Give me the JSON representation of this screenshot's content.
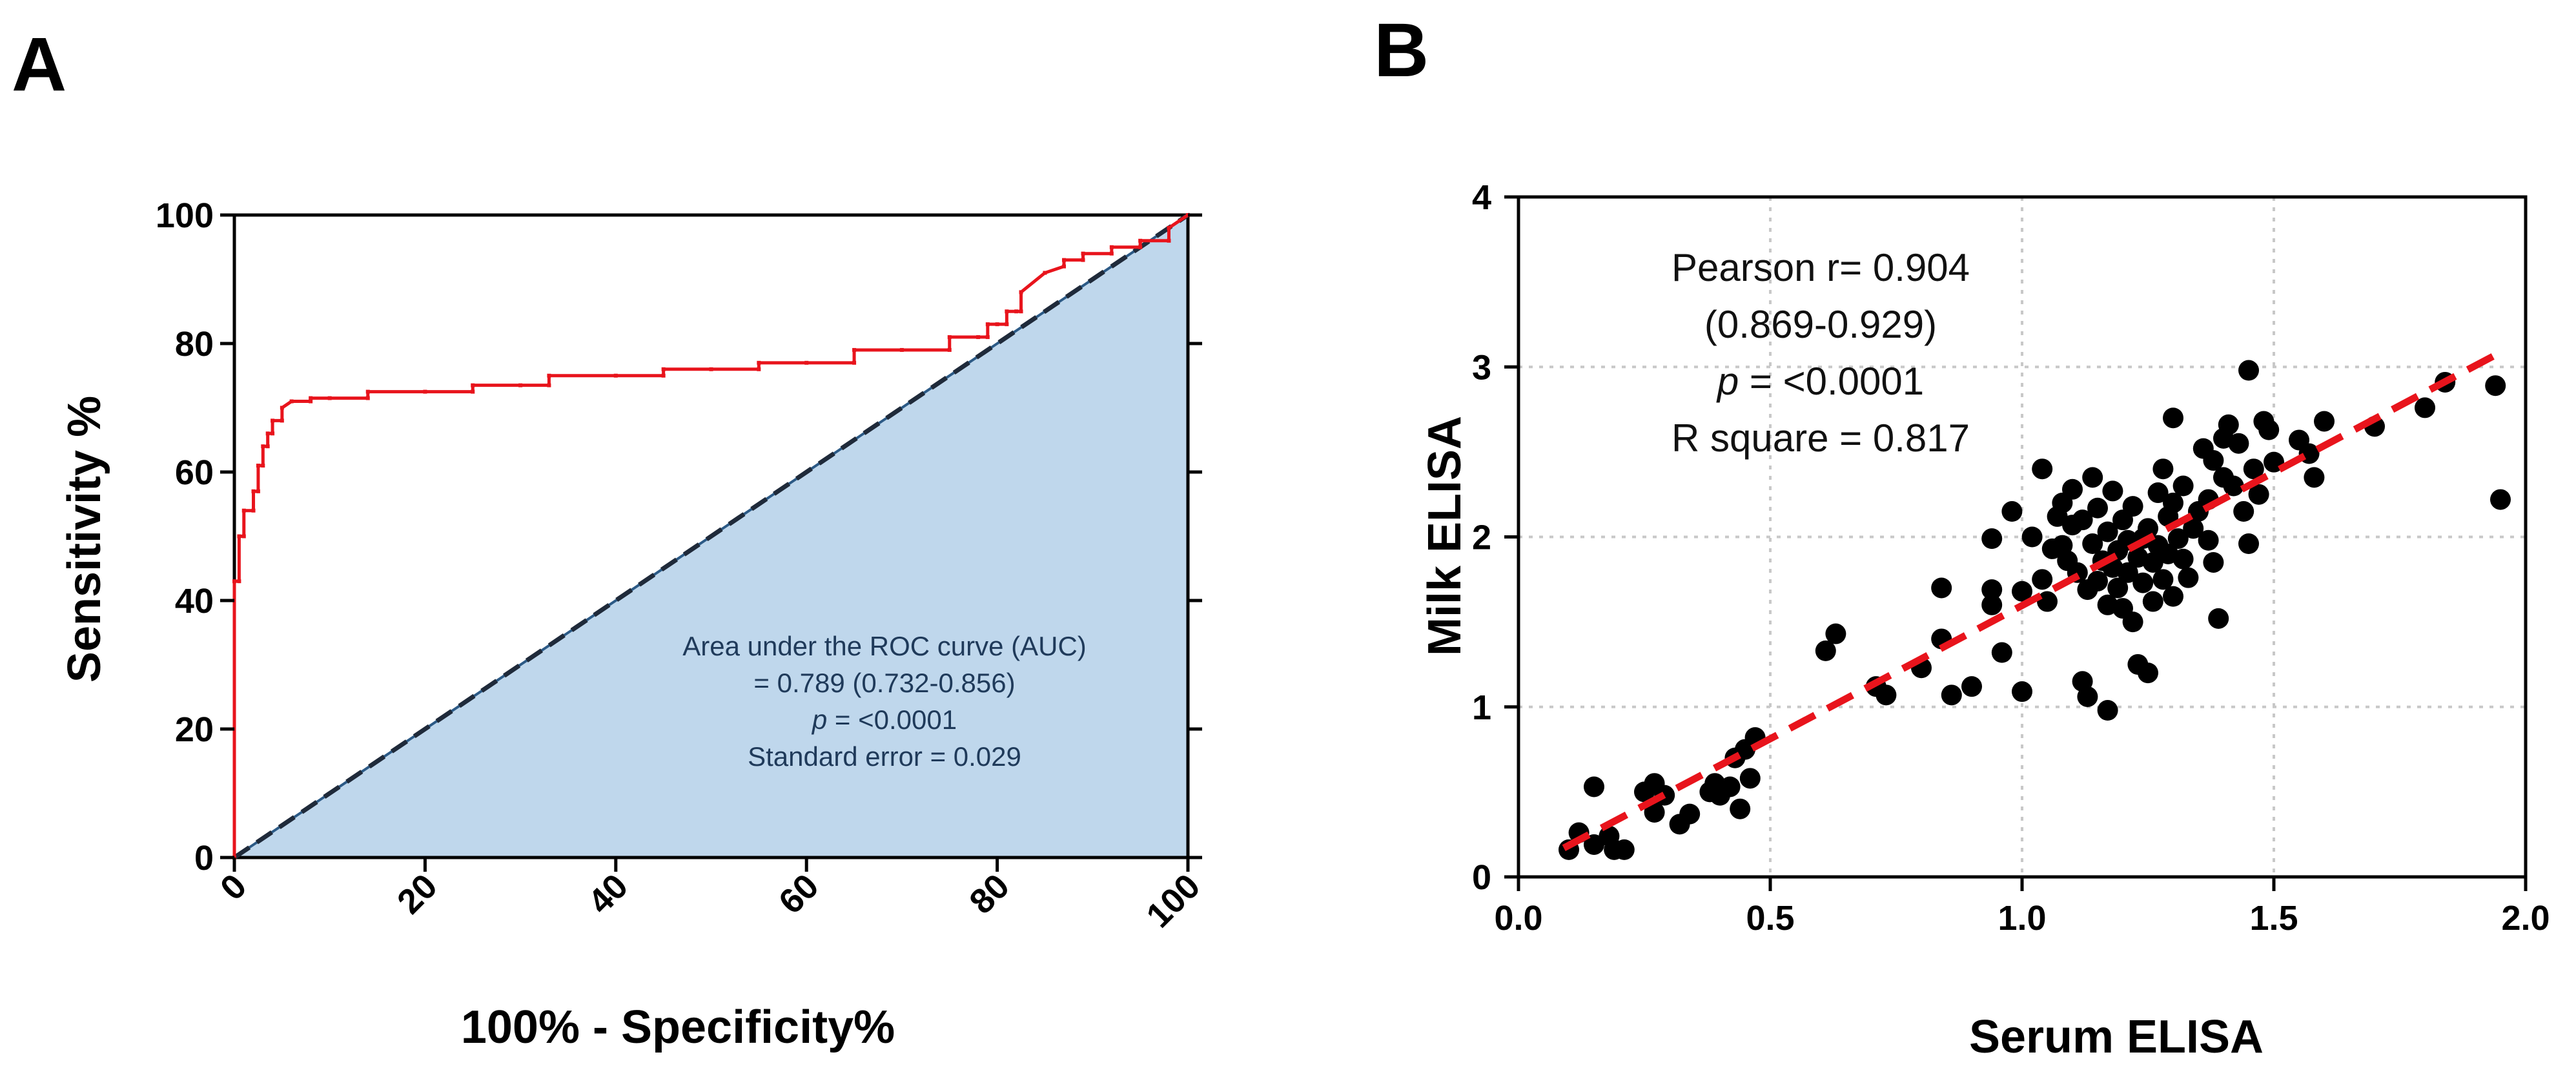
{
  "panels": {
    "a_letter": "A",
    "b_letter": "B"
  },
  "chart_data": [
    {
      "type": "line",
      "subtype": "roc",
      "panel": "A",
      "title": "",
      "xlabel": "100% - Specificity%",
      "ylabel": "Sensitivity %",
      "xlim": [
        0,
        100
      ],
      "ylim": [
        0,
        100
      ],
      "xticks": [
        0,
        20,
        40,
        60,
        80,
        100
      ],
      "yticks": [
        0,
        20,
        40,
        60,
        80,
        100
      ],
      "series": [
        {
          "name": "ROC curve",
          "color": "#e8141c",
          "x": [
            0,
            0,
            0.5,
            0.5,
            1,
            1,
            2,
            2,
            2.5,
            2.5,
            3,
            3,
            3.5,
            3.5,
            4,
            4,
            5,
            5,
            6,
            8,
            8,
            10,
            14,
            14,
            20,
            25,
            25,
            30,
            33,
            33,
            40,
            45,
            45,
            50,
            55,
            55,
            60,
            65,
            65,
            70,
            75,
            75,
            78,
            79,
            79,
            80,
            81,
            81,
            82,
            82.5,
            82.5,
            85,
            87,
            87,
            89,
            89,
            92,
            92,
            95,
            95,
            98,
            98,
            100
          ],
          "y": [
            0,
            43,
            43,
            50,
            50,
            54,
            54,
            57,
            57,
            61,
            61,
            64,
            64,
            66,
            66,
            68,
            68,
            70,
            71,
            71,
            71.5,
            71.5,
            71.5,
            72.5,
            72.5,
            72.5,
            73.5,
            73.5,
            73.5,
            75,
            75,
            75,
            76,
            76,
            76,
            77,
            77,
            77,
            79,
            79,
            79,
            81,
            81,
            81,
            83,
            83,
            83,
            85,
            85,
            85,
            88,
            91,
            92,
            93,
            93,
            94,
            94,
            95,
            95,
            96,
            96,
            98,
            100
          ]
        },
        {
          "name": "Reference line",
          "color": "#1f2a3a",
          "x": [
            0,
            100
          ],
          "y": [
            0,
            100
          ]
        }
      ],
      "shaded_area": {
        "name": "AUC region",
        "color": "#bfd7ec"
      },
      "annotation": {
        "line1": "Area under the ROC curve (AUC)",
        "line2": "= 0.789 (0.732-0.856)",
        "line3_italic": "p",
        "line3_rest": " = <0.0001",
        "line4": "Standard error = 0.029"
      }
    },
    {
      "type": "scatter",
      "panel": "B",
      "title": "",
      "xlabel": "Serum ELISA",
      "ylabel": "Milk ELISA",
      "xlim": [
        0,
        2
      ],
      "ylim": [
        0,
        4
      ],
      "xticks": [
        0,
        0.5,
        1,
        1.5,
        2
      ],
      "xtick_labels": [
        "0.0",
        "0.5",
        "1.0",
        "1.5",
        "2.0"
      ],
      "yticks": [
        0,
        1,
        2,
        3,
        4
      ],
      "ytick_labels": [
        "0",
        "1",
        "2",
        "3",
        "4"
      ],
      "grid": true,
      "point_color": "#000000",
      "points": [
        [
          0.1,
          0.16
        ],
        [
          0.12,
          0.26
        ],
        [
          0.15,
          0.19
        ],
        [
          0.15,
          0.53
        ],
        [
          0.18,
          0.24
        ],
        [
          0.19,
          0.16
        ],
        [
          0.21,
          0.16
        ],
        [
          0.25,
          0.5
        ],
        [
          0.27,
          0.55
        ],
        [
          0.27,
          0.38
        ],
        [
          0.29,
          0.48
        ],
        [
          0.32,
          0.31
        ],
        [
          0.34,
          0.37
        ],
        [
          0.38,
          0.5
        ],
        [
          0.39,
          0.55
        ],
        [
          0.4,
          0.48
        ],
        [
          0.42,
          0.53
        ],
        [
          0.43,
          0.7
        ],
        [
          0.44,
          0.4
        ],
        [
          0.45,
          0.75
        ],
        [
          0.46,
          0.58
        ],
        [
          0.47,
          0.82
        ],
        [
          0.61,
          1.33
        ],
        [
          0.63,
          1.43
        ],
        [
          0.71,
          1.12
        ],
        [
          0.73,
          1.07
        ],
        [
          0.8,
          1.23
        ],
        [
          0.84,
          1.4
        ],
        [
          0.84,
          1.7
        ],
        [
          0.86,
          1.07
        ],
        [
          0.9,
          1.12
        ],
        [
          0.94,
          1.99
        ],
        [
          0.94,
          1.69
        ],
        [
          0.94,
          1.6
        ],
        [
          0.96,
          1.32
        ],
        [
          0.98,
          2.15
        ],
        [
          1.0,
          1.09
        ],
        [
          1.0,
          1.68
        ],
        [
          1.02,
          2.0
        ],
        [
          1.04,
          2.4
        ],
        [
          1.04,
          1.75
        ],
        [
          1.05,
          1.62
        ],
        [
          1.06,
          1.93
        ],
        [
          1.07,
          2.12
        ],
        [
          1.08,
          2.2
        ],
        [
          1.08,
          1.95
        ],
        [
          1.09,
          1.86
        ],
        [
          1.1,
          2.07
        ],
        [
          1.1,
          2.28
        ],
        [
          1.11,
          1.79
        ],
        [
          1.12,
          1.15
        ],
        [
          1.12,
          2.1
        ],
        [
          1.13,
          1.06
        ],
        [
          1.13,
          1.69
        ],
        [
          1.14,
          2.35
        ],
        [
          1.14,
          1.96
        ],
        [
          1.15,
          2.17
        ],
        [
          1.15,
          1.74
        ],
        [
          1.16,
          1.86
        ],
        [
          1.17,
          0.98
        ],
        [
          1.17,
          2.03
        ],
        [
          1.17,
          1.6
        ],
        [
          1.18,
          2.27
        ],
        [
          1.18,
          1.82
        ],
        [
          1.19,
          1.92
        ],
        [
          1.19,
          1.7
        ],
        [
          1.2,
          2.1
        ],
        [
          1.2,
          1.58
        ],
        [
          1.21,
          1.98
        ],
        [
          1.21,
          1.79
        ],
        [
          1.22,
          1.5
        ],
        [
          1.22,
          2.18
        ],
        [
          1.23,
          1.88
        ],
        [
          1.23,
          1.25
        ],
        [
          1.24,
          1.99
        ],
        [
          1.24,
          1.73
        ],
        [
          1.25,
          2.05
        ],
        [
          1.25,
          1.2
        ],
        [
          1.26,
          1.85
        ],
        [
          1.26,
          1.62
        ],
        [
          1.27,
          2.26
        ],
        [
          1.27,
          1.95
        ],
        [
          1.28,
          1.75
        ],
        [
          1.28,
          2.4
        ],
        [
          1.29,
          2.12
        ],
        [
          1.29,
          1.9
        ],
        [
          1.3,
          2.7
        ],
        [
          1.3,
          2.2
        ],
        [
          1.3,
          1.65
        ],
        [
          1.31,
          1.99
        ],
        [
          1.32,
          2.3
        ],
        [
          1.32,
          1.87
        ],
        [
          1.33,
          1.76
        ],
        [
          1.34,
          2.05
        ],
        [
          1.35,
          2.15
        ],
        [
          1.36,
          2.52
        ],
        [
          1.37,
          1.98
        ],
        [
          1.37,
          2.22
        ],
        [
          1.38,
          2.45
        ],
        [
          1.38,
          1.85
        ],
        [
          1.39,
          1.52
        ],
        [
          1.4,
          2.58
        ],
        [
          1.4,
          2.35
        ],
        [
          1.41,
          2.66
        ],
        [
          1.42,
          2.3
        ],
        [
          1.43,
          2.55
        ],
        [
          1.44,
          2.15
        ],
        [
          1.45,
          2.98
        ],
        [
          1.45,
          1.96
        ],
        [
          1.46,
          2.4
        ],
        [
          1.47,
          2.25
        ],
        [
          1.48,
          2.68
        ],
        [
          1.49,
          2.63
        ],
        [
          1.5,
          2.44
        ],
        [
          1.55,
          2.57
        ],
        [
          1.57,
          2.49
        ],
        [
          1.58,
          2.35
        ],
        [
          1.6,
          2.68
        ],
        [
          1.7,
          2.65
        ],
        [
          1.8,
          2.76
        ],
        [
          1.84,
          2.91
        ],
        [
          1.94,
          2.89
        ],
        [
          1.95,
          2.22
        ]
      ],
      "regression": {
        "color": "#e8141c",
        "x1": 0.09,
        "y1": 0.17,
        "x2": 1.94,
        "y2": 3.07
      },
      "annotation": {
        "line1": "Pearson r= 0.904",
        "line2": "(0.869-0.929)",
        "line3_italic": "p",
        "line3_rest": " = <0.0001",
        "line4": "R square  = 0.817"
      }
    }
  ]
}
